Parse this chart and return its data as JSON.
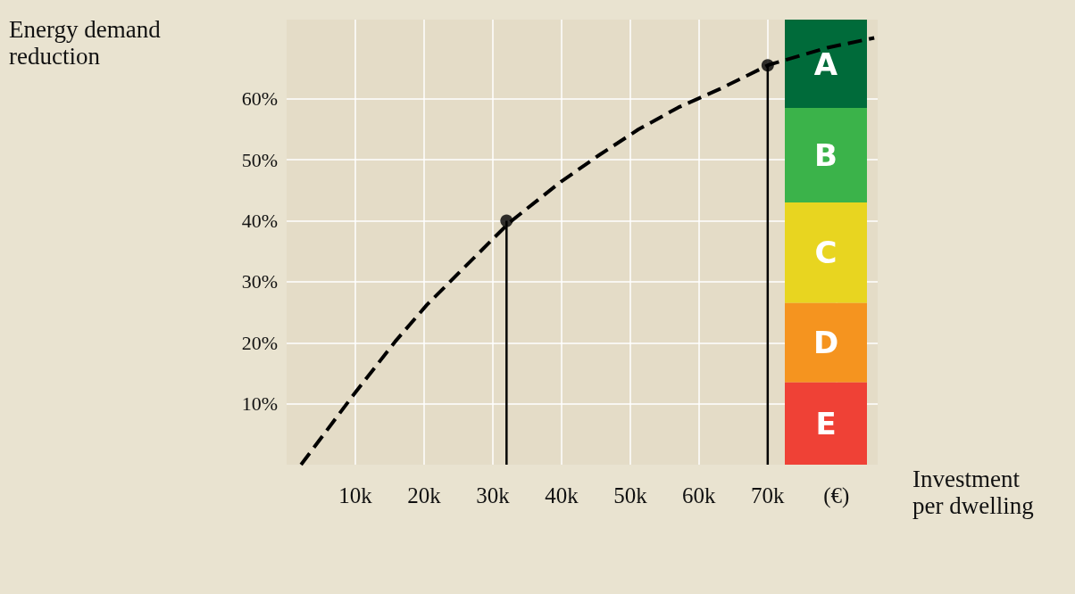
{
  "chart_data": {
    "type": "line",
    "xlabel": "Investment per dwelling",
    "ylabel": "Energy demand reduction",
    "xlim": [
      0,
      86
    ],
    "ylim": [
      0,
      73
    ],
    "xticks": [
      {
        "value": 10,
        "label": "10k"
      },
      {
        "value": 20,
        "label": "20k"
      },
      {
        "value": 30,
        "label": "30k"
      },
      {
        "value": 40,
        "label": "40k"
      },
      {
        "value": 50,
        "label": "50k"
      },
      {
        "value": 60,
        "label": "60k"
      },
      {
        "value": 70,
        "label": "70k"
      },
      {
        "value": 80,
        "label": "(€)"
      }
    ],
    "yticks": [
      {
        "value": 10,
        "label": "10%"
      },
      {
        "value": 20,
        "label": "20%"
      },
      {
        "value": 30,
        "label": "30%"
      },
      {
        "value": 40,
        "label": "40%"
      },
      {
        "value": 50,
        "label": "50%"
      },
      {
        "value": 60,
        "label": "60%"
      }
    ],
    "grid": true,
    "series": [
      {
        "color": "#000000",
        "marker": "none",
        "line_style": "dashed",
        "x": [
          2.1,
          9.7,
          15.8,
          20.4,
          25.1,
          32.4,
          39.9,
          45.5,
          51.2,
          57,
          63,
          70.2,
          78.7,
          85.5
        ],
        "values": [
          0,
          11.4,
          20.2,
          26.2,
          31.5,
          39.7,
          46.4,
          50.8,
          55,
          58.6,
          61.6,
          65.6,
          68.4,
          70
        ]
      },
      {
        "type": "lollipop",
        "color": "#000000",
        "marker": "circle",
        "x": [
          32,
          70
        ],
        "values": [
          40,
          65.5
        ]
      }
    ],
    "bands": [
      {
        "axis": "y",
        "from": 58.5,
        "to": 73,
        "label": "A",
        "color": "#006b3a"
      },
      {
        "axis": "y",
        "from": 43,
        "to": 58.5,
        "label": "B",
        "color": "#3bb34a"
      },
      {
        "axis": "y",
        "from": 26.5,
        "to": 43,
        "label": "C",
        "color": "#e8d520"
      },
      {
        "axis": "y",
        "from": 13.5,
        "to": 26.5,
        "label": "D",
        "color": "#f5941f"
      },
      {
        "axis": "y",
        "from": 0,
        "to": 13.5,
        "label": "E",
        "color": "#ef4136"
      }
    ]
  }
}
